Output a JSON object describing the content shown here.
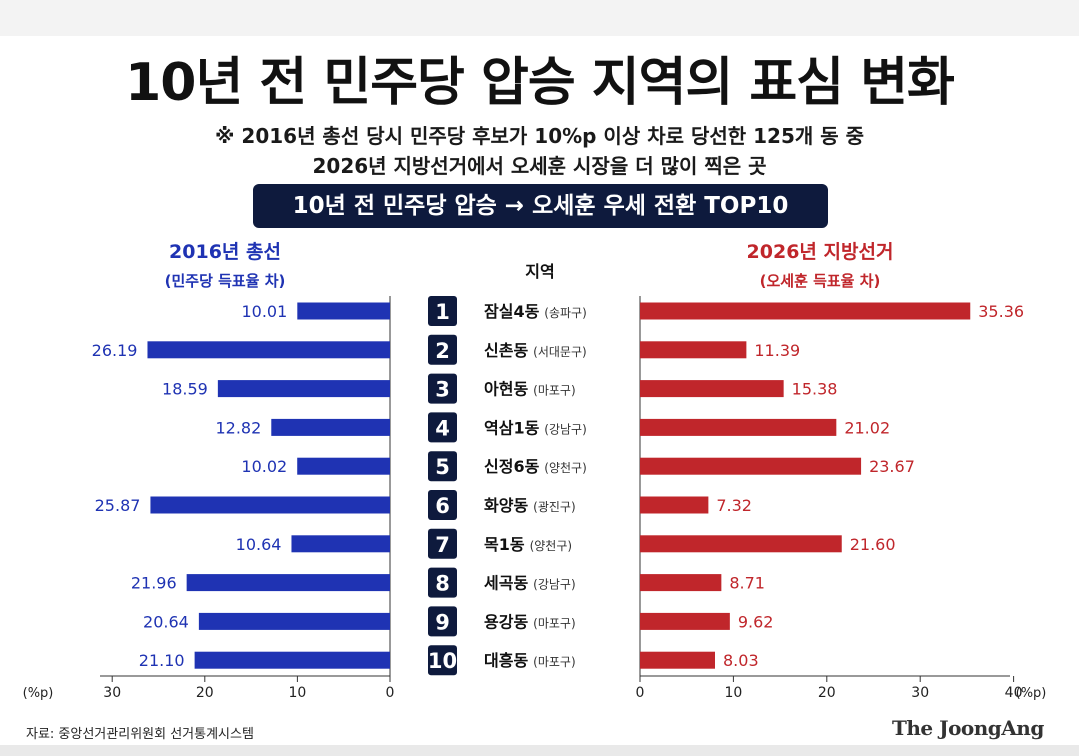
{
  "title": "10년 전 민주당 압승 지역의 표심 변화",
  "note_line1": "※ 2016년 총선 당시 민주당 후보가 10%p 이상 차로 당선한 125개 동 중",
  "note_line2": "2026년 지방선거에서 오세훈 시장을 더 많이 찍은 곳",
  "banner": "10년 전 민주당 압승 → 오세훈 우세 전환 TOP10",
  "left_header": {
    "line1": "2016년 총선",
    "line2": "(민주당 득표율 차)"
  },
  "right_header": {
    "line1": "2026년 지방선거",
    "line2": "(오세훈 득표율 차)"
  },
  "region_header": "지역",
  "colors": {
    "left": "#1f33b3",
    "right": "#c0262b",
    "badge": "#0e1a3d"
  },
  "chart_data": {
    "type": "bar",
    "categories": [
      {
        "rank": "1",
        "name": "잠실4동",
        "district": "(송파구)"
      },
      {
        "rank": "2",
        "name": "신촌동",
        "district": "(서대문구)"
      },
      {
        "rank": "3",
        "name": "아현동",
        "district": "(마포구)"
      },
      {
        "rank": "4",
        "name": "역삼1동",
        "district": "(강남구)"
      },
      {
        "rank": "5",
        "name": "신정6동",
        "district": "(양천구)"
      },
      {
        "rank": "6",
        "name": "화양동",
        "district": "(광진구)"
      },
      {
        "rank": "7",
        "name": "목1동",
        "district": "(양천구)"
      },
      {
        "rank": "8",
        "name": "세곡동",
        "district": "(강남구)"
      },
      {
        "rank": "9",
        "name": "용강동",
        "district": "(마포구)"
      },
      {
        "rank": "10",
        "name": "대흥동",
        "district": "(마포구)"
      }
    ],
    "series": [
      {
        "values": [
          10.01,
          26.19,
          18.59,
          12.82,
          10.02,
          25.87,
          10.64,
          21.96,
          20.64,
          21.1
        ],
        "labels": [
          "10.01",
          "26.19",
          "18.59",
          "12.82",
          "10.02",
          "25.87",
          "10.64",
          "21.96",
          "20.64",
          "21.10"
        ]
      },
      {
        "values": [
          35.36,
          11.39,
          15.38,
          21.02,
          23.67,
          7.32,
          21.6,
          8.71,
          9.62,
          8.03
        ],
        "labels": [
          "35.36",
          "11.39",
          "15.38",
          "21.02",
          "23.67",
          "7.32",
          "21.60",
          "8.71",
          "9.62",
          "8.03"
        ]
      }
    ],
    "left_axis": {
      "ticks": [
        "30",
        "20",
        "10",
        "0"
      ],
      "unit": "(%p)",
      "range": [
        0,
        30
      ]
    },
    "right_axis": {
      "ticks": [
        "0",
        "10",
        "20",
        "30",
        "40"
      ],
      "unit": "(%p)",
      "range": [
        0,
        40
      ]
    }
  },
  "footer": {
    "source": "자료: 중앙선거관리위원회 선거통계시스템",
    "logo": "The JoongAng"
  }
}
